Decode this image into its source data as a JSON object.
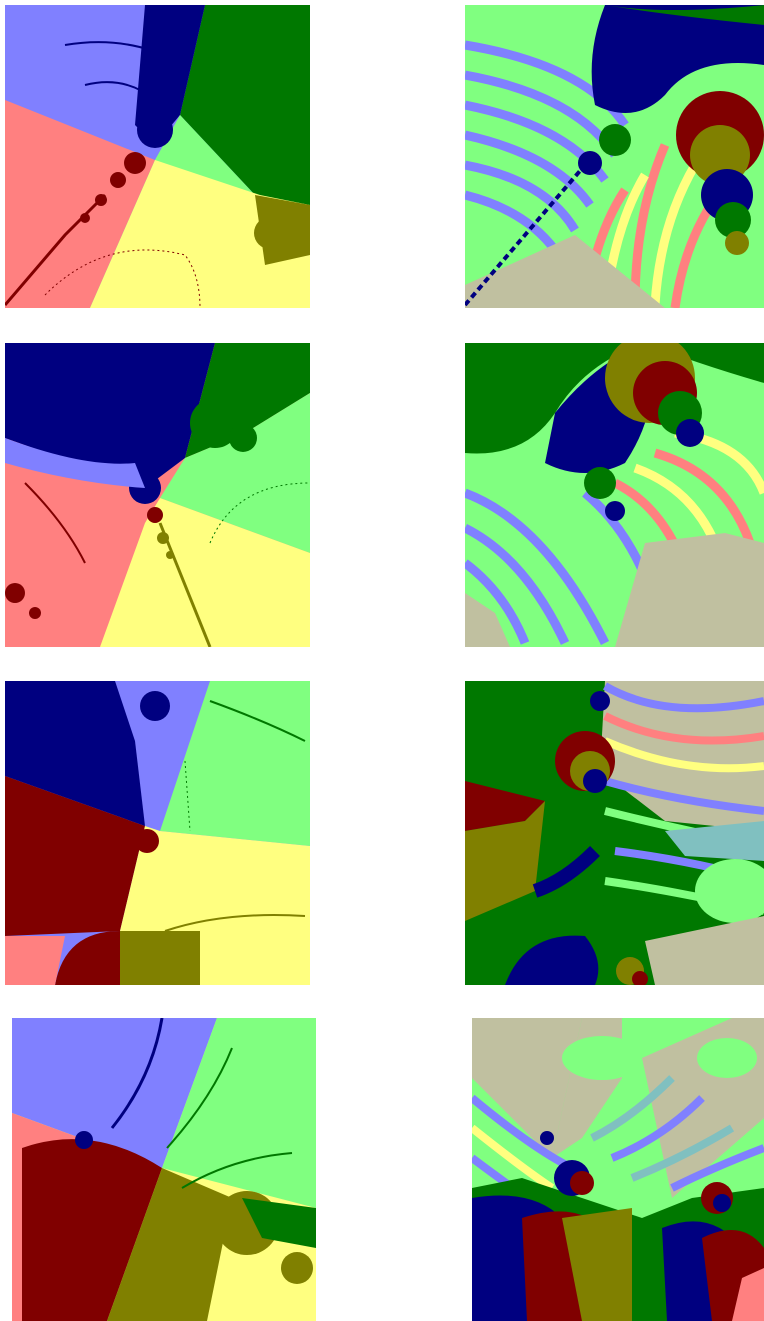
{
  "colors": {
    "light_blue": "#8080ff",
    "dark_blue": "#000080",
    "green": "#007800",
    "light_green": "#80ff80",
    "light_red": "#ff8080",
    "dark_red": "#800000",
    "light_yellow": "#ffff80",
    "olive": "#808000",
    "grey_beige": "#c0c0a0",
    "teal": "#80c0c0"
  },
  "panels": [
    {
      "id": "p1",
      "kind": "basin-sectors"
    },
    {
      "id": "p2",
      "kind": "striped-zoom"
    },
    {
      "id": "p3",
      "kind": "basin-sectors"
    },
    {
      "id": "p4",
      "kind": "striped-zoom"
    },
    {
      "id": "p5",
      "kind": "basin-sectors"
    },
    {
      "id": "p6",
      "kind": "striped-zoom"
    },
    {
      "id": "p7",
      "kind": "basin-sectors"
    },
    {
      "id": "p8",
      "kind": "striped-zoom"
    }
  ]
}
